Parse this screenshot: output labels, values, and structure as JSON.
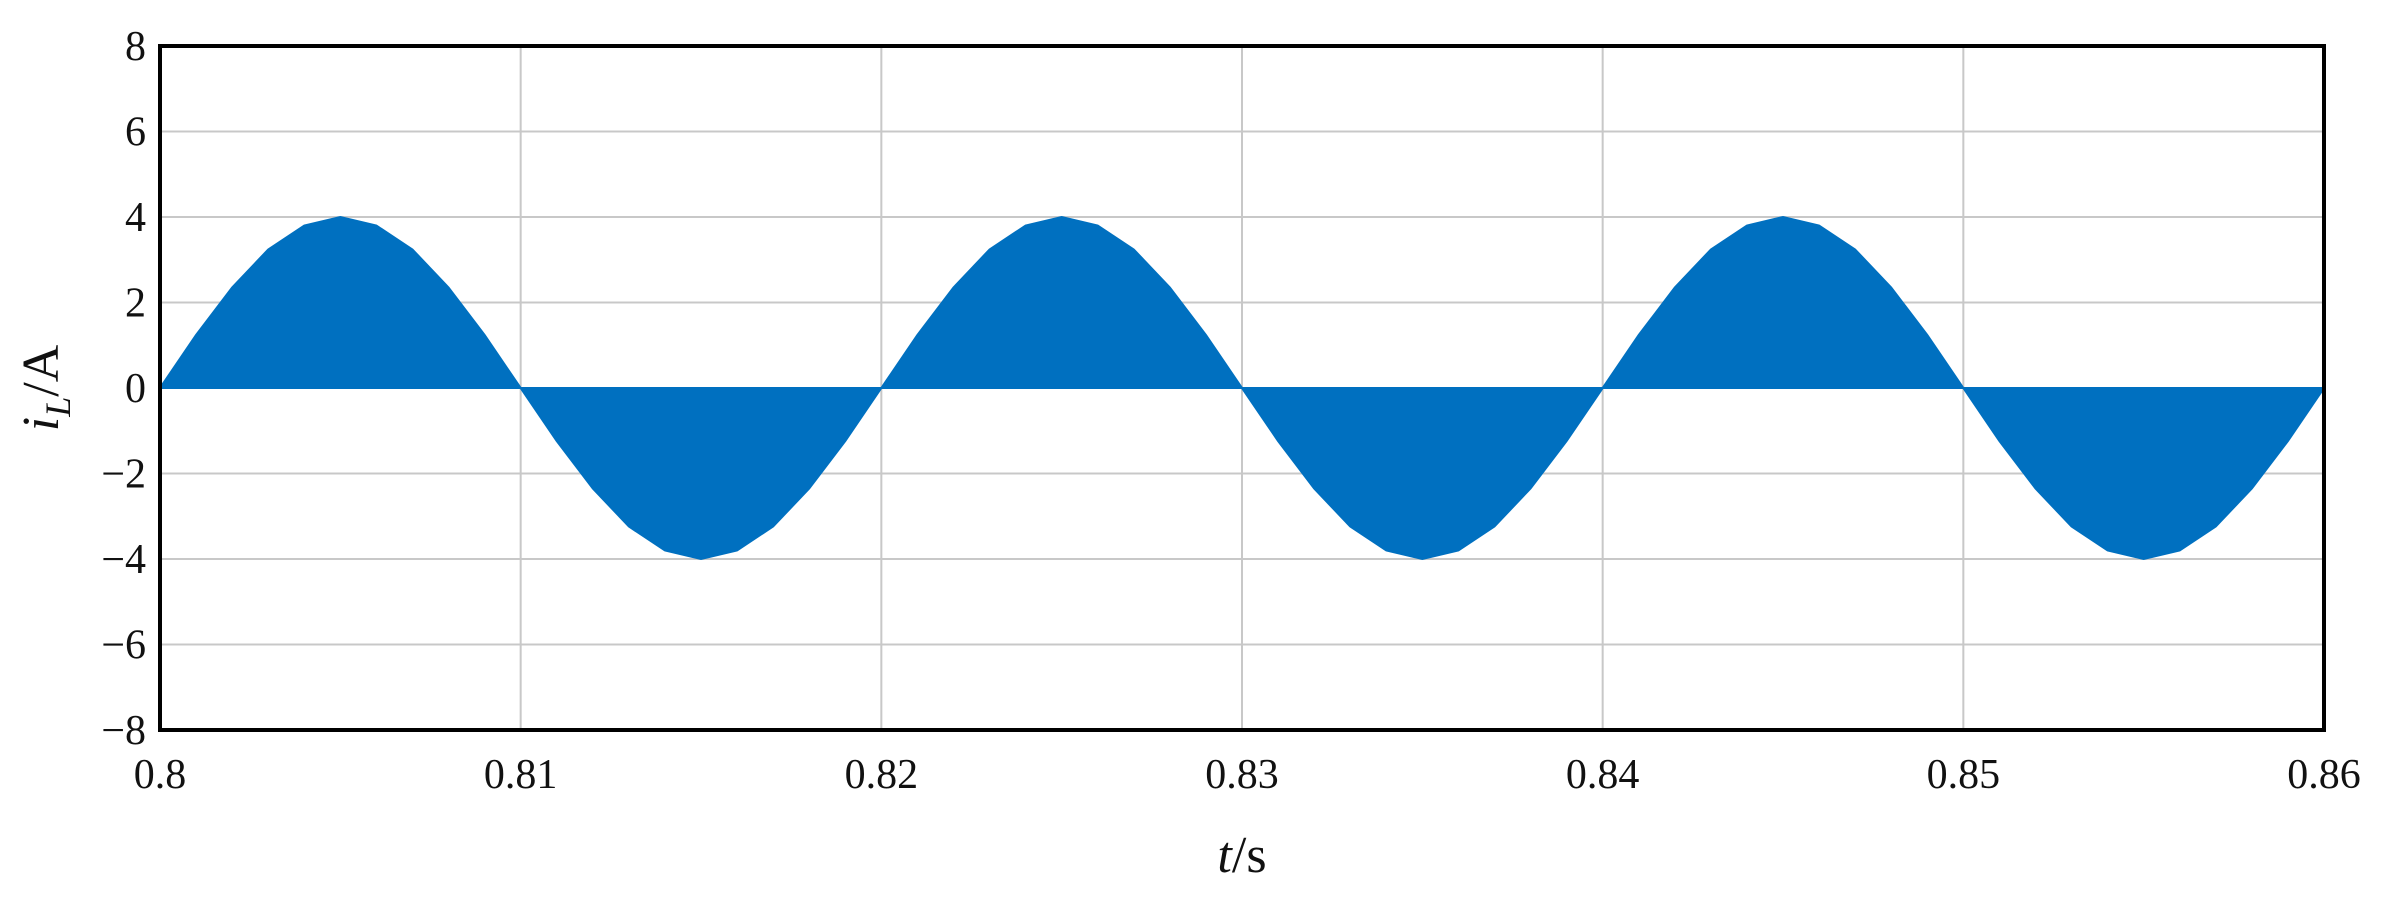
{
  "chart_data": {
    "type": "area",
    "y_label": {
      "var": "i",
      "sub": "L",
      "unit": "/A"
    },
    "x_label": {
      "var": "t",
      "unit": "/s"
    },
    "x": [
      0.8,
      0.801,
      0.802,
      0.803,
      0.804,
      0.805,
      0.806,
      0.807,
      0.808,
      0.809,
      0.81,
      0.811,
      0.812,
      0.813,
      0.814,
      0.815,
      0.816,
      0.817,
      0.818,
      0.819,
      0.82,
      0.821,
      0.822,
      0.823,
      0.824,
      0.825,
      0.826,
      0.827,
      0.828,
      0.829,
      0.83,
      0.831,
      0.832,
      0.833,
      0.834,
      0.835,
      0.836,
      0.837,
      0.838,
      0.839,
      0.84,
      0.841,
      0.842,
      0.843,
      0.844,
      0.845,
      0.846,
      0.847,
      0.848,
      0.849,
      0.85,
      0.851,
      0.852,
      0.853,
      0.854,
      0.855,
      0.856,
      0.857,
      0.858,
      0.859,
      0.86
    ],
    "values": [
      0,
      1.24,
      2.35,
      3.24,
      3.8,
      4,
      3.8,
      3.24,
      2.35,
      1.24,
      0,
      -1.24,
      -2.35,
      -3.24,
      -3.8,
      -4,
      -3.8,
      -3.24,
      -2.35,
      -1.24,
      0,
      1.24,
      2.35,
      3.24,
      3.8,
      4,
      3.8,
      3.24,
      2.35,
      1.24,
      0,
      -1.24,
      -2.35,
      -3.24,
      -3.8,
      -4,
      -3.8,
      -3.24,
      -2.35,
      -1.24,
      0,
      1.24,
      2.35,
      3.24,
      3.8,
      4,
      3.8,
      3.24,
      2.35,
      1.24,
      0,
      -1.24,
      -2.35,
      -3.24,
      -3.8,
      -4,
      -3.8,
      -3.24,
      -2.35,
      -1.24,
      0
    ],
    "color": "#0070c0",
    "xlim": [
      0.8,
      0.86
    ],
    "xticks": [
      0.8,
      0.81,
      0.82,
      0.83,
      0.84,
      0.85,
      0.86
    ],
    "ylim": [
      -8,
      8
    ],
    "yticks": [
      {
        "value": -8,
        "label": "−8"
      },
      {
        "value": -6,
        "label": "−6"
      },
      {
        "value": -4,
        "label": "−4"
      },
      {
        "value": -2,
        "label": "−2"
      },
      0,
      2,
      4,
      6,
      8
    ],
    "grid": true
  }
}
